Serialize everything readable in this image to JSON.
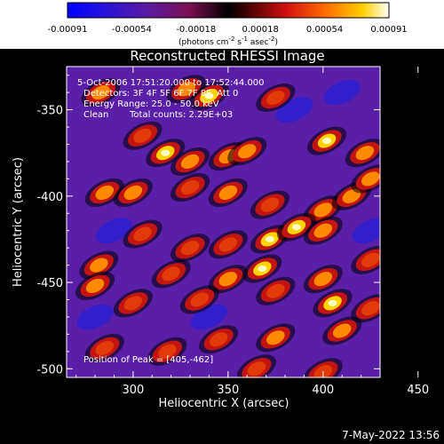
{
  "chart_data": {
    "type": "heatmap",
    "title": "Reconstructed RHESSI Image",
    "xlabel": "Heliocentric X (arcsec)",
    "ylabel": "Heliocentric Y (arcsec)",
    "xlim": [
      265,
      430
    ],
    "ylim": [
      -505,
      -325
    ],
    "x_ticks": [
      300,
      350,
      400,
      450
    ],
    "y_ticks": [
      -350,
      -400,
      -450,
      -500
    ],
    "colorbar": {
      "ticks": [
        "-0.00091",
        "-0.00054",
        "-0.00018",
        "0.00018",
        "0.00054",
        "0.00091"
      ],
      "min": -0.00091,
      "max": 0.00091,
      "units_line": "(photons cm",
      "units_exp1": "-2",
      "units_mid": " s",
      "units_exp2": "-1",
      "units_end": " asec",
      "units_exp3": "-2",
      "units_close": ")",
      "colormap": "blue-purple-red-orange-yellow-white"
    },
    "annotations": {
      "time_range": "5-Oct-2006 17:51:20.000 to 17:52:44.000",
      "detectors": "Detectors: 3F 4F 5F 6F 7F 8F, Att 0",
      "energy_range": "Energy Range: 25.0 - 50.0 keV",
      "clean": "Clean",
      "total_counts": "Total counts: 2.29E+03",
      "peak": "Position of Peak = [405,-462]"
    },
    "bright_sources": [
      {
        "x": 283,
        "y": -340,
        "level": 0.8
      },
      {
        "x": 340,
        "y": -342,
        "level": 0.95
      },
      {
        "x": 328,
        "y": -338,
        "level": 0.85
      },
      {
        "x": 375,
        "y": -343,
        "level": 0.75
      },
      {
        "x": 305,
        "y": -365,
        "level": 0.75
      },
      {
        "x": 317,
        "y": -375,
        "level": 1.0
      },
      {
        "x": 330,
        "y": -380,
        "level": 0.85
      },
      {
        "x": 350,
        "y": -377,
        "level": 0.9
      },
      {
        "x": 360,
        "y": -374,
        "level": 0.8
      },
      {
        "x": 402,
        "y": -368,
        "level": 1.0
      },
      {
        "x": 422,
        "y": -375,
        "level": 0.85
      },
      {
        "x": 285,
        "y": -398,
        "level": 0.85
      },
      {
        "x": 300,
        "y": -398,
        "level": 0.8
      },
      {
        "x": 330,
        "y": -395,
        "level": 0.75
      },
      {
        "x": 350,
        "y": -398,
        "level": 0.85
      },
      {
        "x": 372,
        "y": -405,
        "level": 0.7
      },
      {
        "x": 400,
        "y": -408,
        "level": 0.85
      },
      {
        "x": 415,
        "y": -400,
        "level": 0.8
      },
      {
        "x": 425,
        "y": -390,
        "level": 0.8
      },
      {
        "x": 305,
        "y": -422,
        "level": 0.7
      },
      {
        "x": 330,
        "y": -430,
        "level": 0.75
      },
      {
        "x": 350,
        "y": -428,
        "level": 0.7
      },
      {
        "x": 372,
        "y": -425,
        "level": 0.95
      },
      {
        "x": 386,
        "y": -418,
        "level": 1.0
      },
      {
        "x": 400,
        "y": -420,
        "level": 0.9
      },
      {
        "x": 282,
        "y": -440,
        "level": 0.8
      },
      {
        "x": 280,
        "y": -452,
        "level": 0.85
      },
      {
        "x": 320,
        "y": -445,
        "level": 0.75
      },
      {
        "x": 350,
        "y": -448,
        "level": 0.85
      },
      {
        "x": 368,
        "y": -442,
        "level": 0.95
      },
      {
        "x": 425,
        "y": -437,
        "level": 0.7
      },
      {
        "x": 300,
        "y": -462,
        "level": 0.7
      },
      {
        "x": 335,
        "y": -460,
        "level": 0.7
      },
      {
        "x": 375,
        "y": -455,
        "level": 0.75
      },
      {
        "x": 400,
        "y": -448,
        "level": 0.85
      },
      {
        "x": 405,
        "y": -462,
        "level": 1.0
      },
      {
        "x": 425,
        "y": -465,
        "level": 0.7
      },
      {
        "x": 285,
        "y": -488,
        "level": 0.75
      },
      {
        "x": 318,
        "y": -490,
        "level": 0.7
      },
      {
        "x": 345,
        "y": -483,
        "level": 0.75
      },
      {
        "x": 375,
        "y": -482,
        "level": 0.85
      },
      {
        "x": 410,
        "y": -478,
        "level": 0.9
      },
      {
        "x": 365,
        "y": -500,
        "level": 0.7
      },
      {
        "x": 400,
        "y": -502,
        "level": 0.75
      }
    ],
    "dark_regions": [
      {
        "x": 385,
        "y": -350,
        "level": 0.0
      },
      {
        "x": 410,
        "y": -340,
        "level": 0.05
      },
      {
        "x": 425,
        "y": -420,
        "level": 0.1
      },
      {
        "x": 290,
        "y": -420,
        "level": 0.15
      },
      {
        "x": 280,
        "y": -470,
        "level": 0.1
      },
      {
        "x": 340,
        "y": -470,
        "level": 0.1
      }
    ]
  },
  "footer": {
    "timestamp": "7-May-2022 13:56"
  }
}
